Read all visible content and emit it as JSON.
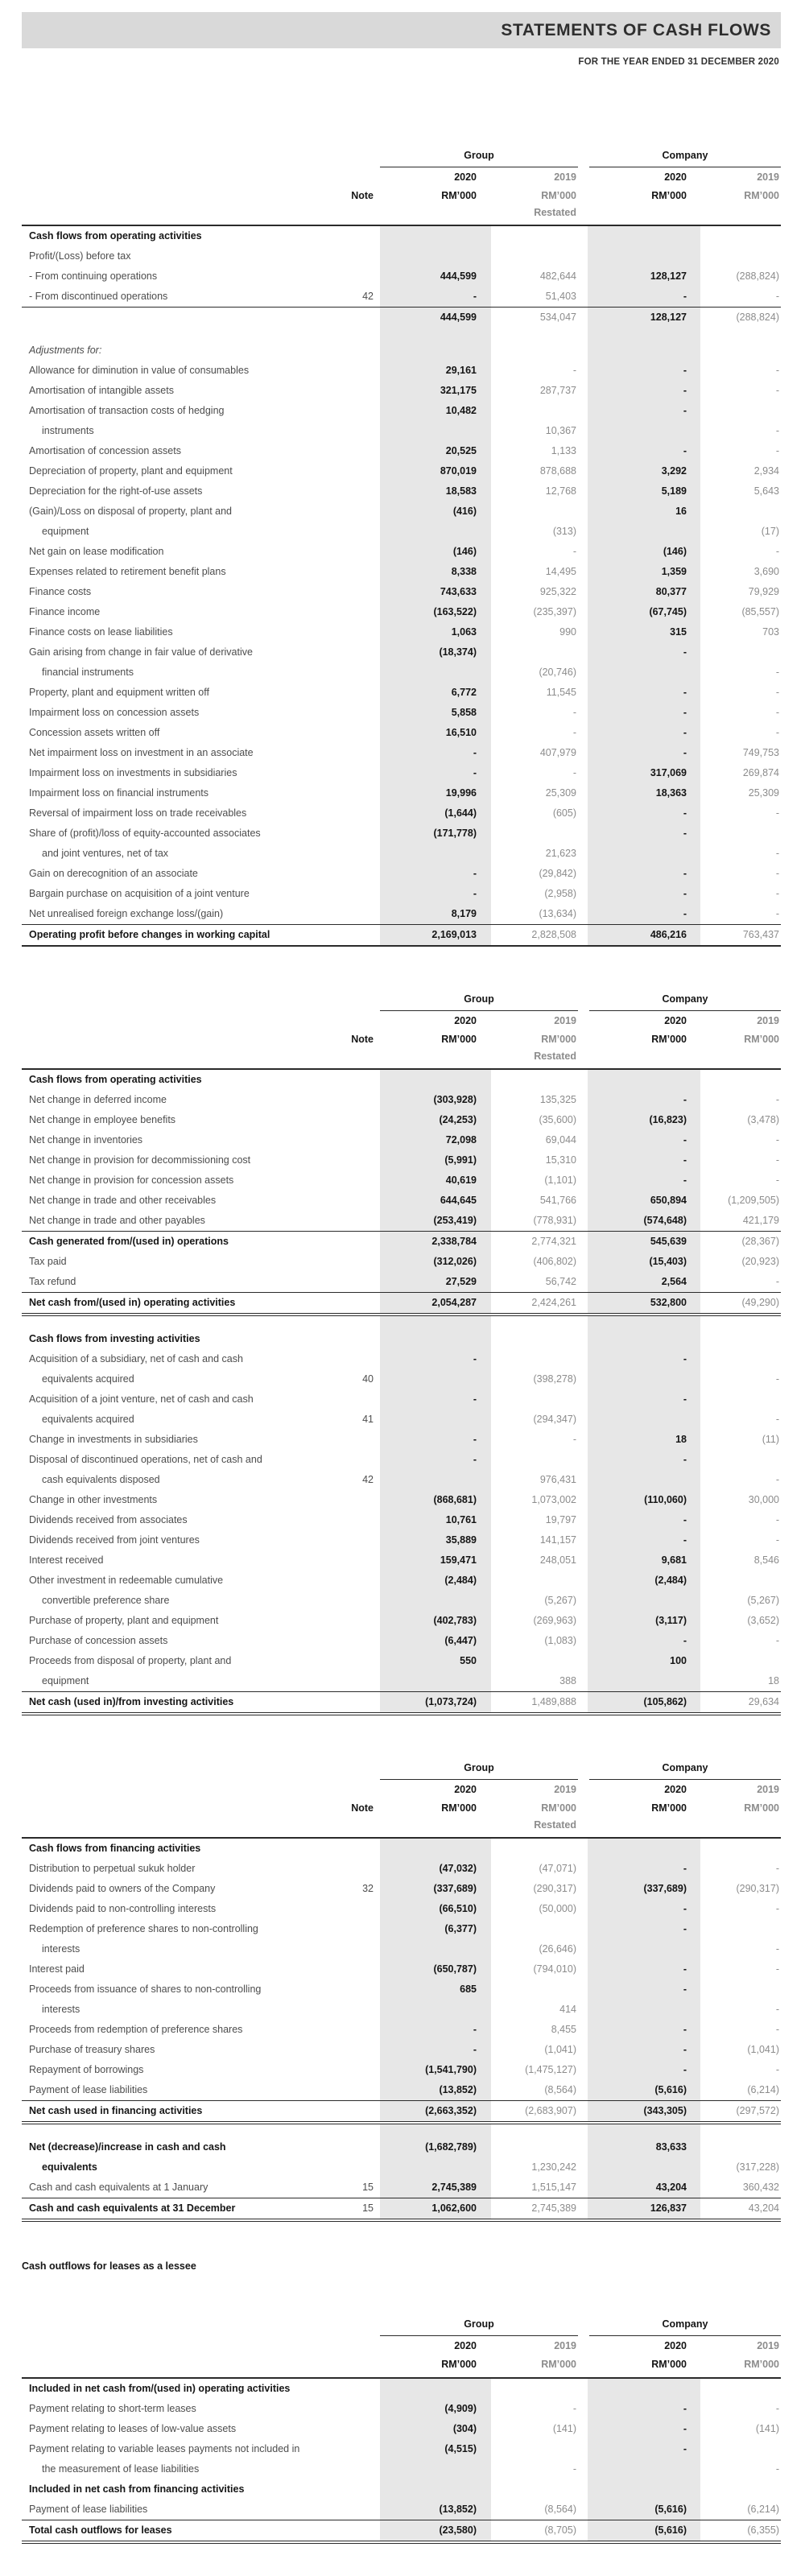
{
  "page": {
    "title": "STATEMENTS OF CASH FLOWS",
    "subtitle": "FOR THE YEAR ENDED 31 DECEMBER 2020"
  },
  "colors": {
    "title_band": "#d9d9d9",
    "column_shade": "#e7e7e7",
    "rule": "#2b2b2b"
  },
  "columns": {
    "group": "Group",
    "company": "Company",
    "note": "Note",
    "year_2020": "2020",
    "year_2019": "2019",
    "unit": "RM’000",
    "restated": "Restated"
  },
  "lessee_heading": "Cash outflows for leases as a lessee",
  "tables": [
    {
      "name": "operating-adjustments",
      "note_col": true,
      "restated": true,
      "rows": [
        {
          "t": "section",
          "label": "Cash flows from operating activities"
        },
        {
          "t": "item",
          "label": "Profit/(Loss) before tax"
        },
        {
          "t": "item",
          "label": "- From continuing operations",
          "v": [
            "444,599",
            "482,644",
            "128,127",
            "(288,824)"
          ]
        },
        {
          "t": "item",
          "label": "- From discontinued operations",
          "note": "42",
          "v": [
            "-",
            "51,403",
            "-",
            "-"
          ]
        },
        {
          "t": "item",
          "label": "",
          "border_top": true,
          "v": [
            "444,599",
            "534,047",
            "128,127",
            "(288,824)"
          ]
        },
        {
          "t": "spacer"
        },
        {
          "t": "italic",
          "label": "Adjustments for:"
        },
        {
          "t": "item",
          "label": "Allowance for diminution in value of consumables",
          "v": [
            "29,161",
            "-",
            "-",
            "-"
          ]
        },
        {
          "t": "item",
          "label": "Amortisation of intangible assets",
          "v": [
            "321,175",
            "287,737",
            "-",
            "-"
          ]
        },
        {
          "t": "item",
          "label": "Amortisation of transaction costs of hedging",
          "label2": "instruments",
          "v": [
            "10,482",
            "10,367",
            "-",
            "-"
          ]
        },
        {
          "t": "item",
          "label": "Amortisation of concession assets",
          "v": [
            "20,525",
            "1,133",
            "-",
            "-"
          ]
        },
        {
          "t": "item",
          "label": "Depreciation of property, plant and equipment",
          "v": [
            "870,019",
            "878,688",
            "3,292",
            "2,934"
          ]
        },
        {
          "t": "item",
          "label": "Depreciation for the right-of-use assets",
          "v": [
            "18,583",
            "12,768",
            "5,189",
            "5,643"
          ]
        },
        {
          "t": "item",
          "label": "(Gain)/Loss on disposal of property, plant and",
          "label2": "equipment",
          "v": [
            "(416)",
            "(313)",
            "16",
            "(17)"
          ]
        },
        {
          "t": "item",
          "label": "Net gain on lease modification",
          "v": [
            "(146)",
            "-",
            "(146)",
            "-"
          ]
        },
        {
          "t": "item",
          "label": "Expenses related to retirement benefit plans",
          "v": [
            "8,338",
            "14,495",
            "1,359",
            "3,690"
          ]
        },
        {
          "t": "item",
          "label": "Finance costs",
          "v": [
            "743,633",
            "925,322",
            "80,377",
            "79,929"
          ]
        },
        {
          "t": "item",
          "label": "Finance income",
          "v": [
            "(163,522)",
            "(235,397)",
            "(67,745)",
            "(85,557)"
          ]
        },
        {
          "t": "item",
          "label": "Finance costs on lease liabilities",
          "v": [
            "1,063",
            "990",
            "315",
            "703"
          ]
        },
        {
          "t": "item",
          "label": "Gain arising from change in fair value of derivative",
          "label2": "financial instruments",
          "v": [
            "(18,374)",
            "(20,746)",
            "-",
            "-"
          ]
        },
        {
          "t": "item",
          "label": "Property, plant and equipment written off",
          "v": [
            "6,772",
            "11,545",
            "-",
            "-"
          ]
        },
        {
          "t": "item",
          "label": "Impairment loss on concession assets",
          "v": [
            "5,858",
            "-",
            "-",
            "-"
          ]
        },
        {
          "t": "item",
          "label": "Concession assets written off",
          "v": [
            "16,510",
            "-",
            "-",
            "-"
          ]
        },
        {
          "t": "item",
          "label": "Net impairment loss on investment in an associate",
          "v": [
            "-",
            "407,979",
            "-",
            "749,753"
          ]
        },
        {
          "t": "item",
          "label": "Impairment loss on investments in subsidiaries",
          "v": [
            "-",
            "-",
            "317,069",
            "269,874"
          ]
        },
        {
          "t": "item",
          "label": "Impairment loss on financial instruments",
          "v": [
            "19,996",
            "25,309",
            "18,363",
            "25,309"
          ]
        },
        {
          "t": "item",
          "label": "Reversal of impairment loss on trade receivables",
          "v": [
            "(1,644)",
            "(605)",
            "-",
            "-"
          ]
        },
        {
          "t": "item",
          "label": "Share of (profit)/loss of equity-accounted associates",
          "label2": "and joint ventures, net of tax",
          "v": [
            "(171,778)",
            "21,623",
            "-",
            "-"
          ]
        },
        {
          "t": "item",
          "label": "Gain on derecognition of an associate",
          "v": [
            "-",
            "(29,842)",
            "-",
            "-"
          ]
        },
        {
          "t": "item",
          "label": "Bargain purchase on acquisition of a joint venture",
          "v": [
            "-",
            "(2,958)",
            "-",
            "-"
          ]
        },
        {
          "t": "item",
          "label": "Net unrealised foreign exchange loss/(gain)",
          "v": [
            "8,179",
            "(13,634)",
            "-",
            "-"
          ]
        },
        {
          "t": "total",
          "label": "Operating profit before changes in working capital",
          "border_top": true,
          "border_bottom": "thick",
          "v": [
            "2,169,013",
            "2,828,508",
            "486,216",
            "763,437"
          ]
        }
      ]
    },
    {
      "name": "working-capital-investing",
      "note_col": true,
      "restated": true,
      "rows": [
        {
          "t": "section",
          "label": "Cash flows from operating activities"
        },
        {
          "t": "item",
          "label": "Net change in deferred income",
          "v": [
            "(303,928)",
            "135,325",
            "-",
            "-"
          ]
        },
        {
          "t": "item",
          "label": "Net change in employee benefits",
          "v": [
            "(24,253)",
            "(35,600)",
            "(16,823)",
            "(3,478)"
          ]
        },
        {
          "t": "item",
          "label": "Net change in inventories",
          "v": [
            "72,098",
            "69,044",
            "-",
            "-"
          ]
        },
        {
          "t": "item",
          "label": "Net change in provision for decommissioning cost",
          "v": [
            "(5,991)",
            "15,310",
            "-",
            "-"
          ]
        },
        {
          "t": "item",
          "label": "Net change in provision for concession assets",
          "v": [
            "40,619",
            "(1,101)",
            "-",
            "-"
          ]
        },
        {
          "t": "item",
          "label": "Net change in trade and other receivables",
          "v": [
            "644,645",
            "541,766",
            "650,894",
            "(1,209,505)"
          ]
        },
        {
          "t": "item",
          "label": "Net change in trade and other payables",
          "v": [
            "(253,419)",
            "(778,931)",
            "(574,648)",
            "421,179"
          ]
        },
        {
          "t": "total",
          "label": "Cash generated from/(used in) operations",
          "border_top": true,
          "v": [
            "2,338,784",
            "2,774,321",
            "545,639",
            "(28,367)"
          ]
        },
        {
          "t": "item",
          "label": "Tax paid",
          "v": [
            "(312,026)",
            "(406,802)",
            "(15,403)",
            "(20,923)"
          ]
        },
        {
          "t": "item",
          "label": "Tax refund",
          "v": [
            "27,529",
            "56,742",
            "2,564",
            "-"
          ]
        },
        {
          "t": "total",
          "label": "Net cash from/(used in) operating activities",
          "border_top": true,
          "border_bottom": "double",
          "v": [
            "2,054,287",
            "2,424,261",
            "532,800",
            "(49,290)"
          ]
        },
        {
          "t": "spacer"
        },
        {
          "t": "section",
          "label": "Cash flows from investing activities"
        },
        {
          "t": "item",
          "label": "Acquisition of a subsidiary, net of cash and cash",
          "label2": "equivalents acquired",
          "note": "40",
          "v": [
            "-",
            "(398,278)",
            "-",
            "-"
          ]
        },
        {
          "t": "item",
          "label": "Acquisition of a joint venture, net of cash and cash",
          "label2": "equivalents acquired",
          "note": "41",
          "v": [
            "-",
            "(294,347)",
            "-",
            "-"
          ]
        },
        {
          "t": "item",
          "label": "Change in investments in subsidiaries",
          "v": [
            "-",
            "-",
            "18",
            "(11)"
          ]
        },
        {
          "t": "item",
          "label": "Disposal of discontinued operations, net of cash and",
          "label2": "cash equivalents disposed",
          "note": "42",
          "v": [
            "-",
            "976,431",
            "-",
            "-"
          ]
        },
        {
          "t": "item",
          "label": "Change in other investments",
          "v": [
            "(868,681)",
            "1,073,002",
            "(110,060)",
            "30,000"
          ]
        },
        {
          "t": "item",
          "label": "Dividends received from associates",
          "v": [
            "10,761",
            "19,797",
            "-",
            "-"
          ]
        },
        {
          "t": "item",
          "label": "Dividends received from joint ventures",
          "v": [
            "35,889",
            "141,157",
            "-",
            "-"
          ]
        },
        {
          "t": "item",
          "label": "Interest received",
          "v": [
            "159,471",
            "248,051",
            "9,681",
            "8,546"
          ]
        },
        {
          "t": "item",
          "label": "Other investment in redeemable cumulative",
          "label2": "convertible preference share",
          "v": [
            "(2,484)",
            "(5,267)",
            "(2,484)",
            "(5,267)"
          ]
        },
        {
          "t": "item",
          "label": "Purchase of property, plant and equipment",
          "v": [
            "(402,783)",
            "(269,963)",
            "(3,117)",
            "(3,652)"
          ]
        },
        {
          "t": "item",
          "label": "Purchase of concession assets",
          "v": [
            "(6,447)",
            "(1,083)",
            "-",
            "-"
          ]
        },
        {
          "t": "item",
          "label": "Proceeds from disposal of property, plant and",
          "label2": "equipment",
          "v": [
            "550",
            "388",
            "100",
            "18"
          ]
        },
        {
          "t": "total",
          "label": "Net cash (used in)/from investing activities",
          "border_top": true,
          "border_bottom": "double",
          "v": [
            "(1,073,724)",
            "1,489,888",
            "(105,862)",
            "29,634"
          ]
        }
      ]
    },
    {
      "name": "financing",
      "note_col": true,
      "restated": true,
      "rows": [
        {
          "t": "section",
          "label": "Cash flows from financing activities"
        },
        {
          "t": "item",
          "label": "Distribution to perpetual sukuk holder",
          "v": [
            "(47,032)",
            "(47,071)",
            "-",
            "-"
          ]
        },
        {
          "t": "item",
          "label": "Dividends paid to owners of the Company",
          "note": "32",
          "v": [
            "(337,689)",
            "(290,317)",
            "(337,689)",
            "(290,317)"
          ]
        },
        {
          "t": "item",
          "label": "Dividends paid to non-controlling interests",
          "v": [
            "(66,510)",
            "(50,000)",
            "-",
            "-"
          ]
        },
        {
          "t": "item",
          "label": "Redemption of preference shares to non-controlling",
          "label2": "interests",
          "v": [
            "(6,377)",
            "(26,646)",
            "-",
            "-"
          ]
        },
        {
          "t": "item",
          "label": "Interest paid",
          "v": [
            "(650,787)",
            "(794,010)",
            "-",
            "-"
          ]
        },
        {
          "t": "item",
          "label": "Proceeds from issuance of shares to non-controlling",
          "label2": "interests",
          "v": [
            "685",
            "414",
            "-",
            "-"
          ]
        },
        {
          "t": "item",
          "label": "Proceeds from redemption of preference shares",
          "v": [
            "-",
            "8,455",
            "-",
            "-"
          ]
        },
        {
          "t": "item",
          "label": "Purchase of treasury shares",
          "v": [
            "-",
            "(1,041)",
            "-",
            "(1,041)"
          ]
        },
        {
          "t": "item",
          "label": "Repayment of borrowings",
          "v": [
            "(1,541,790)",
            "(1,475,127)",
            "-",
            "-"
          ]
        },
        {
          "t": "item",
          "label": "Payment of lease liabilities",
          "v": [
            "(13,852)",
            "(8,564)",
            "(5,616)",
            "(6,214)"
          ]
        },
        {
          "t": "total",
          "label": "Net cash used in financing activities",
          "border_top": true,
          "border_bottom": "double",
          "v": [
            "(2,663,352)",
            "(2,683,907)",
            "(343,305)",
            "(297,572)"
          ]
        },
        {
          "t": "spacer"
        },
        {
          "t": "total",
          "label": "Net (decrease)/increase in cash and cash",
          "label2": "equivalents",
          "v": [
            "(1,682,789)",
            "1,230,242",
            "83,633",
            "(317,228)"
          ]
        },
        {
          "t": "item",
          "label": "Cash and cash equivalents at 1 January",
          "note": "15",
          "v": [
            "2,745,389",
            "1,515,147",
            "43,204",
            "360,432"
          ]
        },
        {
          "t": "total",
          "label": "Cash and cash equivalents at 31 December",
          "note": "15",
          "border_top": true,
          "border_bottom": "double",
          "v": [
            "1,062,600",
            "2,745,389",
            "126,837",
            "43,204"
          ]
        }
      ]
    },
    {
      "name": "lease-outflows",
      "note_col": false,
      "restated": false,
      "rows": [
        {
          "t": "section",
          "label": "Included in net cash from/(used in) operating activities"
        },
        {
          "t": "item",
          "label": "Payment relating to short-term leases",
          "v": [
            "(4,909)",
            "-",
            "-",
            "-"
          ]
        },
        {
          "t": "item",
          "label": "Payment relating to leases of low-value assets",
          "v": [
            "(304)",
            "(141)",
            "-",
            "(141)"
          ]
        },
        {
          "t": "item",
          "label": "Payment relating to variable leases payments not included in",
          "label2": "the measurement of lease liabilities",
          "v": [
            "(4,515)",
            "-",
            "-",
            "-"
          ]
        },
        {
          "t": "section",
          "label": "Included in net cash from financing activities"
        },
        {
          "t": "item",
          "label": "Payment of lease liabilities",
          "v": [
            "(13,852)",
            "(8,564)",
            "(5,616)",
            "(6,214)"
          ]
        },
        {
          "t": "total",
          "label": "Total cash outflows for leases",
          "border_top": true,
          "border_bottom": "double",
          "v": [
            "(23,580)",
            "(8,705)",
            "(5,616)",
            "(6,355)"
          ]
        }
      ]
    }
  ]
}
